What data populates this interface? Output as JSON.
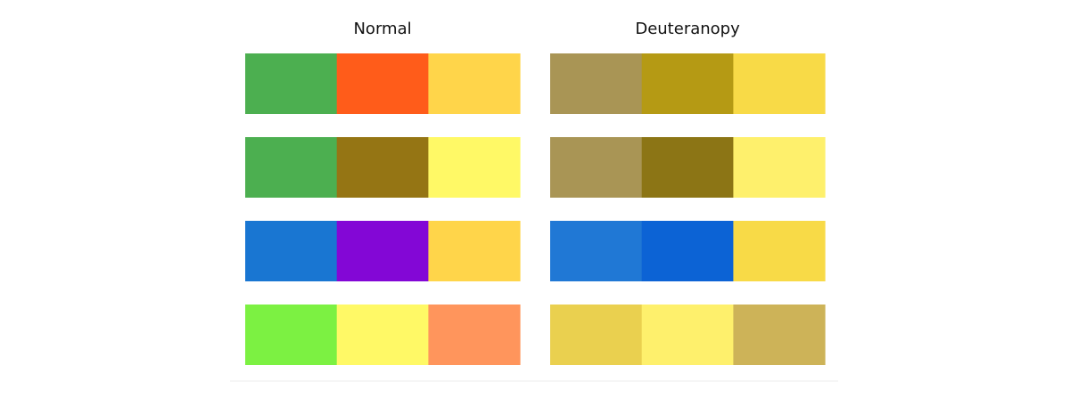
{
  "panels": [
    {
      "title": "Normal",
      "rows": [
        [
          "#4caf50",
          "#ff5c1a",
          "#ffd54a"
        ],
        [
          "#4caf50",
          "#957514",
          "#fff966"
        ],
        [
          "#1976d2",
          "#8307d6",
          "#ffd54a"
        ],
        [
          "#7cf142",
          "#fff966",
          "#ff955c"
        ]
      ]
    },
    {
      "title": "Deuteranopy",
      "rows": [
        [
          "#a99555",
          "#b59a14",
          "#f8da47"
        ],
        [
          "#a99555",
          "#8c7515",
          "#fef06c"
        ],
        [
          "#2078d5",
          "#0c63d5",
          "#f8da47"
        ],
        [
          "#ead04f",
          "#fef06c",
          "#cdb358"
        ]
      ]
    }
  ]
}
